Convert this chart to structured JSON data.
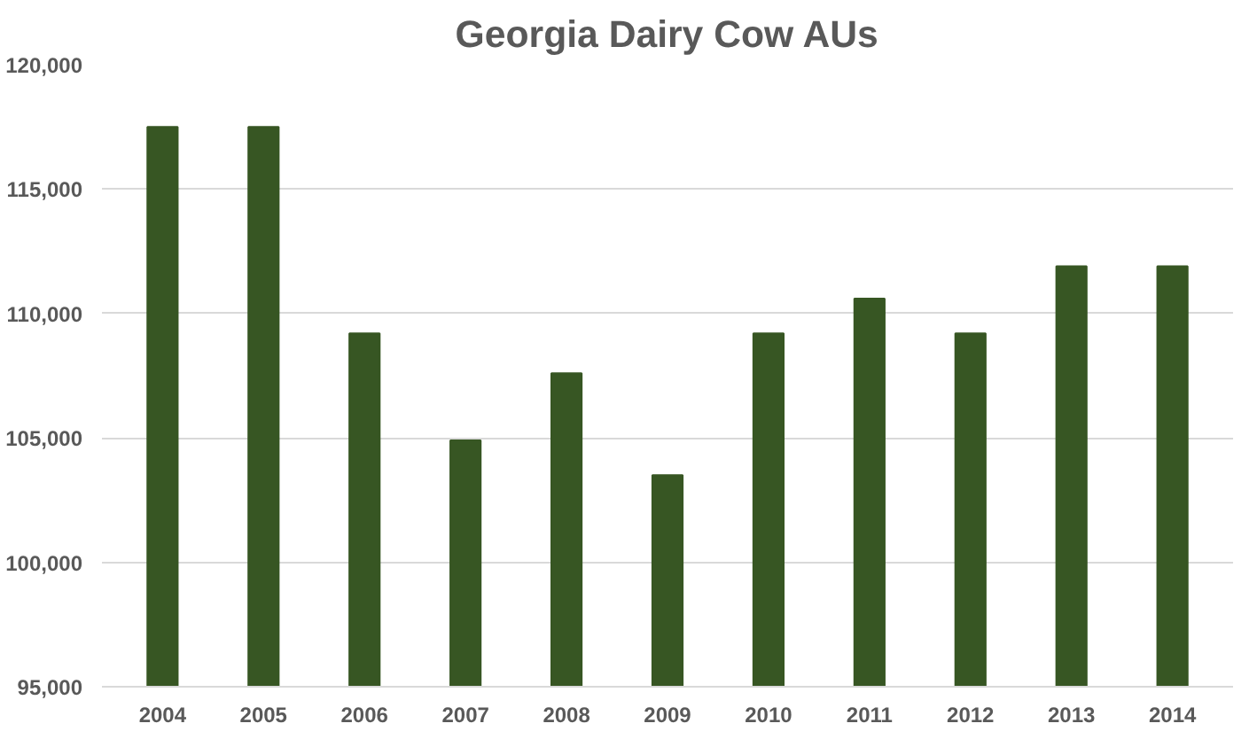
{
  "chart_data": {
    "type": "bar",
    "title": "Georgia Dairy Cow AUs",
    "categories": [
      "2004",
      "2005",
      "2006",
      "2007",
      "2008",
      "2009",
      "2010",
      "2011",
      "2012",
      "2013",
      "2014"
    ],
    "values": [
      117500,
      117500,
      109200,
      104900,
      107600,
      103500,
      109200,
      110600,
      109200,
      111900,
      111900
    ],
    "color": "#375623",
    "ylim": [
      95000,
      120000
    ],
    "yticks": [
      {
        "value": 95000,
        "label": "95,000"
      },
      {
        "value": 100000,
        "label": "100,000"
      },
      {
        "value": 105000,
        "label": "105,000"
      },
      {
        "value": 110000,
        "label": "110,000"
      },
      {
        "value": 115000,
        "label": "115,000"
      },
      {
        "value": 120000,
        "label": "120,000"
      }
    ],
    "grid": "y"
  }
}
